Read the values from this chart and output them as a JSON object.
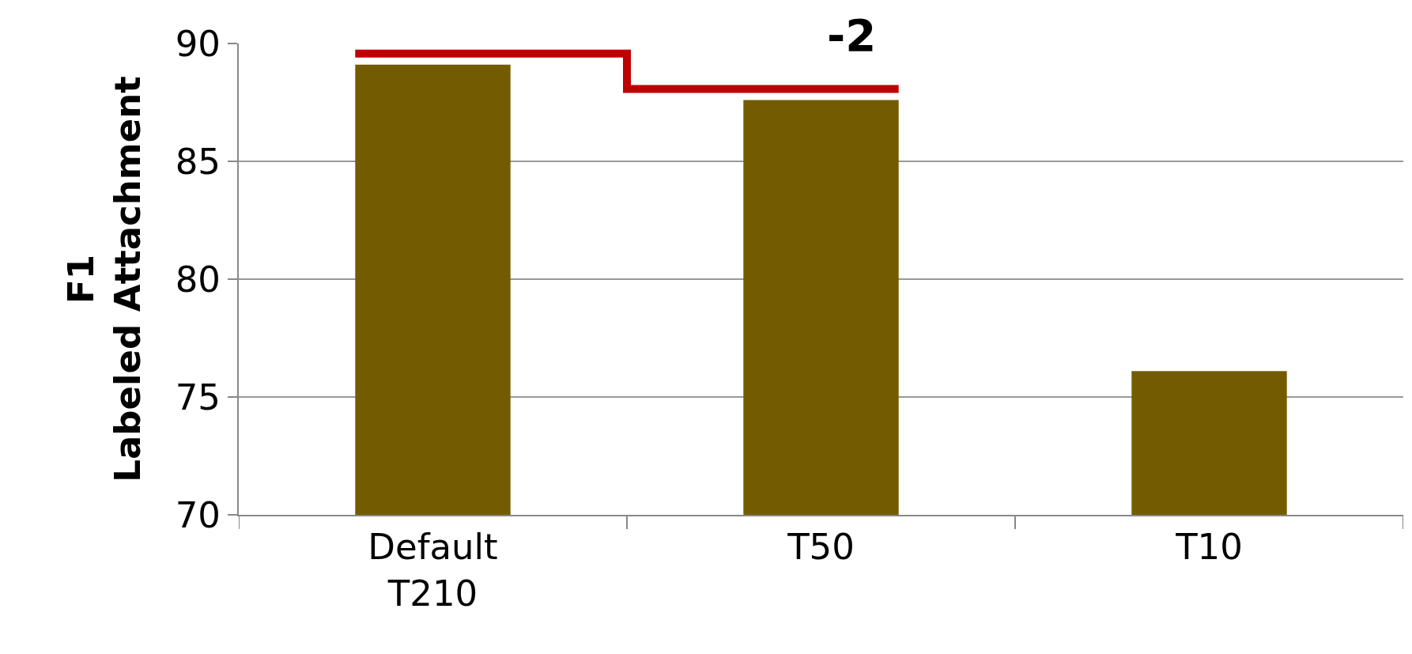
{
  "chart_data": {
    "type": "bar",
    "categories": [
      "Default\nT210",
      "T50",
      "T10"
    ],
    "values": [
      89.1,
      87.6,
      76.1
    ],
    "color": "#735c00",
    "ylabel": "F1\nLabeled Attachment",
    "ylim": [
      70,
      90
    ],
    "yticks": [
      70,
      75,
      80,
      85,
      90
    ],
    "grid": "y",
    "annotations": [
      "-2"
    ]
  }
}
